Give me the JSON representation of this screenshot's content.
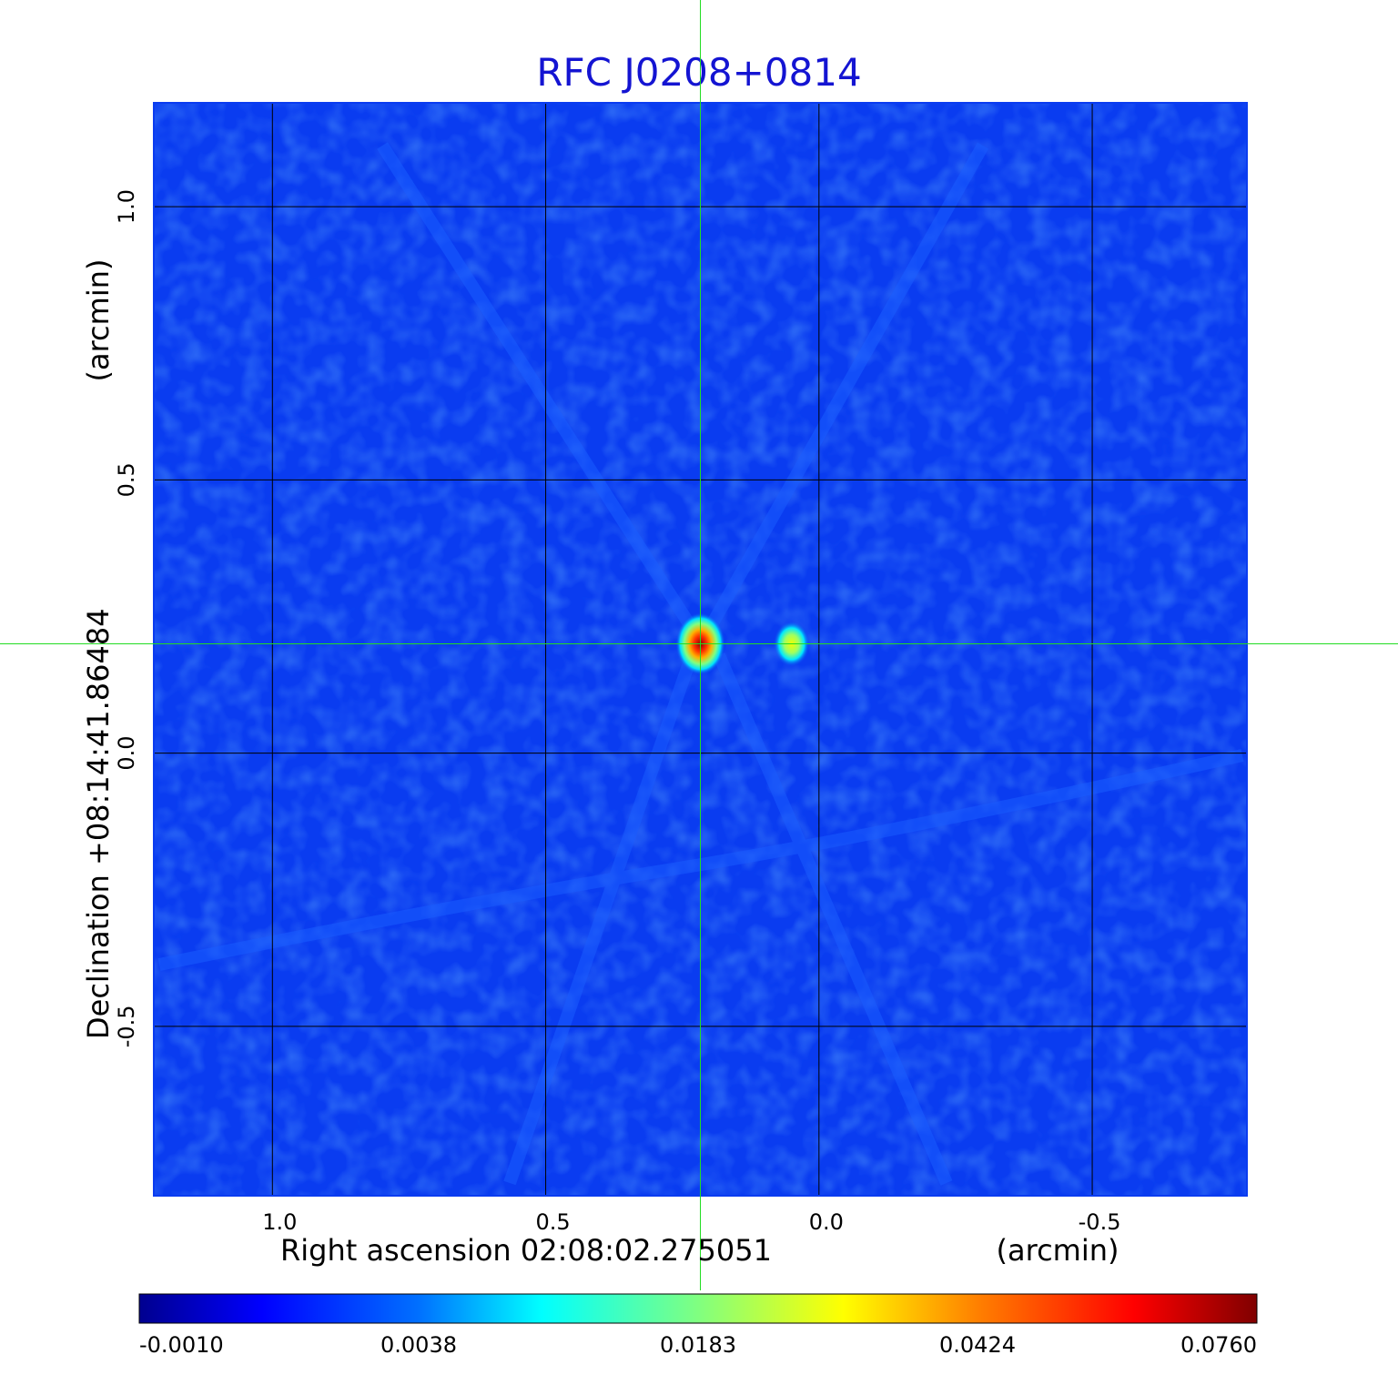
{
  "chart_data": {
    "type": "heatmap",
    "title": "RFC J0208+0814",
    "xlabel": "Right ascension  02:08:02.275051",
    "xunit": "(arcmin)",
    "ylabel": "Declination  +08:14:41.86484",
    "yunit": "(arcmin)",
    "xlim": [
      1.217,
      -0.783
    ],
    "ylim": [
      -0.81,
      1.19
    ],
    "x_ticks": [
      1.0,
      0.5,
      0.0,
      -0.5
    ],
    "x_tick_labels": [
      "1.0",
      "0.5",
      "0.0",
      "-0.5"
    ],
    "y_ticks": [
      -0.5,
      0.0,
      0.5,
      1.0
    ],
    "y_tick_labels": [
      "-0.5",
      "0.0",
      "0.5",
      "1.0"
    ],
    "grid": true,
    "crosshair": {
      "x": 0.217,
      "y": 0.2,
      "color": "#22dd22"
    },
    "sources": [
      {
        "x": 0.217,
        "y": 0.2,
        "peak": 0.076
      },
      {
        "x": 0.05,
        "y": 0.2,
        "peak": 0.03
      }
    ],
    "colorbar": {
      "tick_labels": [
        "-0.0010",
        "0.0038",
        "0.0183",
        "0.0424",
        "0.0760"
      ],
      "colormap": "jet"
    },
    "colors": {
      "title": "#1414d2",
      "background": "#0a3cf0",
      "grid": "#000000"
    }
  }
}
